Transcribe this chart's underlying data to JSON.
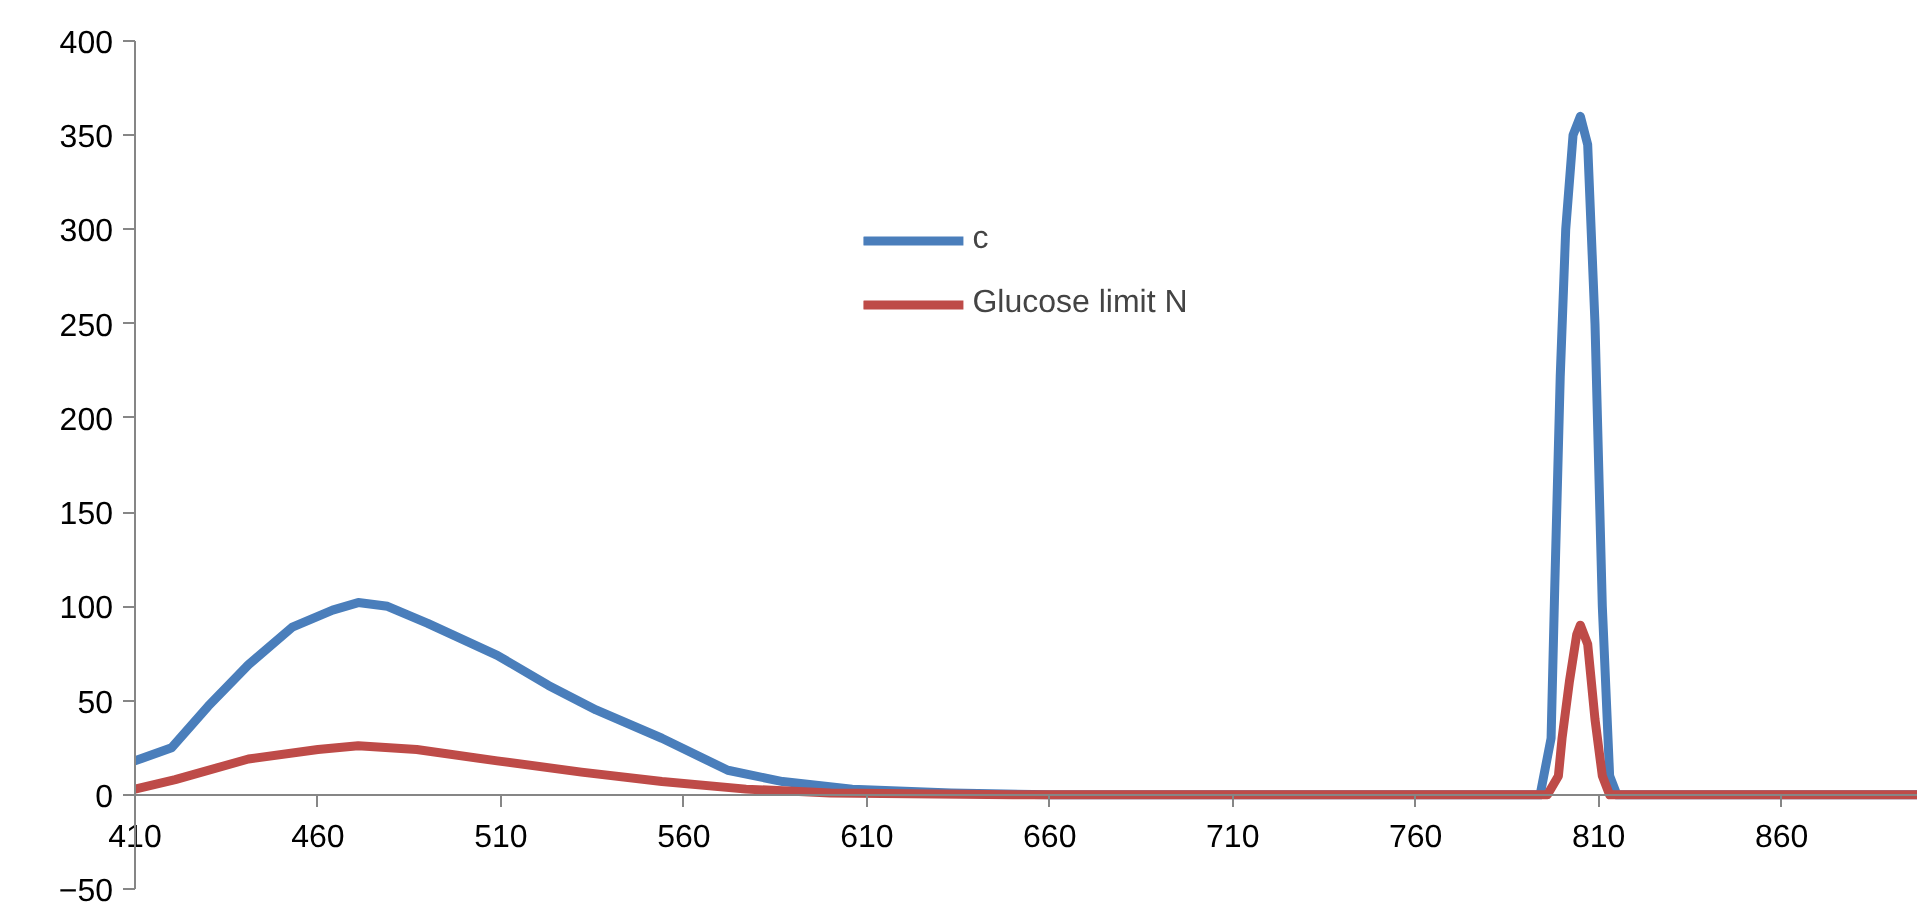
{
  "chart_data": {
    "type": "line",
    "xlim": [
      410,
      897
    ],
    "ylim": [
      -50,
      400
    ],
    "xticks": [
      410,
      460,
      510,
      560,
      610,
      660,
      710,
      760,
      810,
      860
    ],
    "yticks": [
      -50,
      0,
      50,
      100,
      150,
      200,
      250,
      300,
      350,
      400
    ],
    "grid": false,
    "legend": "top",
    "marker": "none",
    "line_style": "solid",
    "series": [
      {
        "name": "c",
        "color": "#4a7ebb",
        "x": [
          410,
          420,
          430,
          441,
          453,
          464,
          471,
          479,
          490,
          509,
          523,
          536,
          554,
          572,
          587,
          606,
          633,
          660,
          700,
          760,
          794,
          797,
          798,
          799.5,
          801,
          803,
          805,
          807,
          809,
          811,
          813,
          815,
          850,
          897
        ],
        "values": [
          18,
          25,
          47,
          69,
          89,
          98,
          102,
          100,
          91,
          74,
          58,
          45,
          30,
          13,
          7,
          3,
          1,
          0,
          0,
          0,
          0,
          30,
          110,
          222,
          300,
          350,
          360,
          345,
          250,
          100,
          10,
          0,
          0,
          0
        ]
      },
      {
        "name": "Glucose limit N",
        "color": "#be4b48",
        "x": [
          410,
          421,
          441,
          460,
          471,
          487,
          509,
          532,
          554,
          577,
          600,
          650,
          700,
          760,
          796,
          799,
          800,
          802,
          804,
          805,
          807,
          809,
          811,
          813,
          850,
          897
        ],
        "values": [
          3,
          8,
          19,
          24,
          26,
          24,
          18,
          12,
          7,
          3,
          1,
          0,
          0,
          0,
          0,
          10,
          30,
          60,
          85,
          90,
          80,
          40,
          10,
          0,
          0,
          0
        ]
      }
    ]
  }
}
